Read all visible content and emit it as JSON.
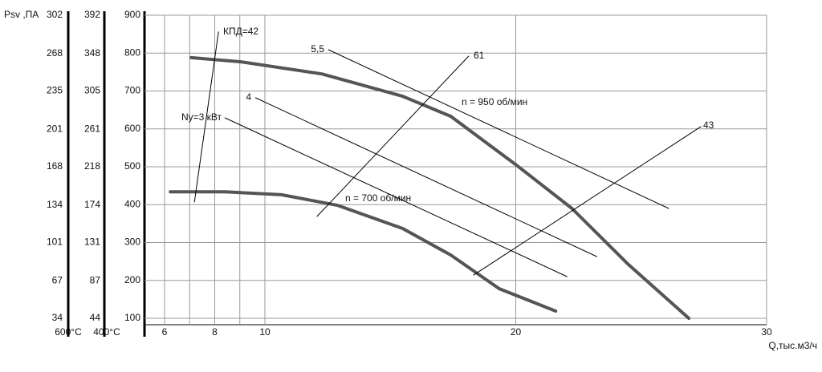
{
  "chart_data": {
    "type": "line",
    "x_label": "Q,тыс.м3/ч",
    "xlim": [
      5.2,
      30
    ],
    "xticks": [
      6,
      8,
      10,
      20,
      30
    ],
    "xgrid": [
      6,
      7,
      8,
      9,
      10,
      20,
      30
    ],
    "ylim": [
      83,
      900
    ],
    "yticks": [
      100,
      200,
      300,
      400,
      500,
      600,
      700,
      800,
      900
    ],
    "grid": true,
    "extra_axes": [
      {
        "title": "Psv ,ПА",
        "footer": "600°C",
        "lim": [
          28.3,
          302
        ],
        "ticks": [
          34,
          67,
          101,
          134,
          168,
          201,
          235,
          268,
          302
        ]
      },
      {
        "footer": "400°C",
        "lim": [
          36.6,
          392
        ],
        "ticks": [
          44,
          87,
          131,
          174,
          218,
          261,
          305,
          348,
          392
        ]
      }
    ],
    "series": [
      {
        "name": "n = 950 об/мин",
        "color": "#555555",
        "line_width": 4,
        "x": [
          7.06,
          9.05,
          12.27,
          15.49,
          17.41,
          19.99,
          22.24,
          24.49,
          26.9
        ],
        "values": [
          788,
          777,
          745,
          686,
          633,
          506,
          390,
          242,
          100
        ]
      },
      {
        "name": "n = 700 об/мин",
        "color": "#555555",
        "line_width": 4,
        "x": [
          6.23,
          8.41,
          10.66,
          12.91,
          15.49,
          17.41,
          19.34,
          21.59
        ],
        "values": [
          434,
          434,
          426,
          398,
          337,
          267,
          178,
          119
        ]
      },
      {
        "name": "5,5",
        "color": "#000000",
        "line_width": 1,
        "x": [
          12.53,
          26.1
        ],
        "values": [
          809,
          390
        ]
      },
      {
        "name": "4",
        "color": "#000000",
        "line_width": 1,
        "x": [
          9.63,
          23.23
        ],
        "values": [
          682,
          263
        ]
      },
      {
        "name": "Ny=3 кВт",
        "color": "#000000",
        "line_width": 1,
        "x": [
          8.41,
          22.04
        ],
        "values": [
          629,
          210
        ]
      },
      {
        "name": "КПД=42",
        "color": "#000000",
        "line_width": 1,
        "x": [
          7.19,
          8.15
        ],
        "values": [
          407,
          856
        ]
      },
      {
        "name": "61",
        "color": "#000000",
        "line_width": 1,
        "x": [
          12.08,
          18.12
        ],
        "values": [
          369,
          792
        ]
      },
      {
        "name": "43",
        "color": "#000000",
        "line_width": 1,
        "x": [
          18.32,
          27.38
        ],
        "values": [
          214,
          606
        ]
      }
    ]
  }
}
